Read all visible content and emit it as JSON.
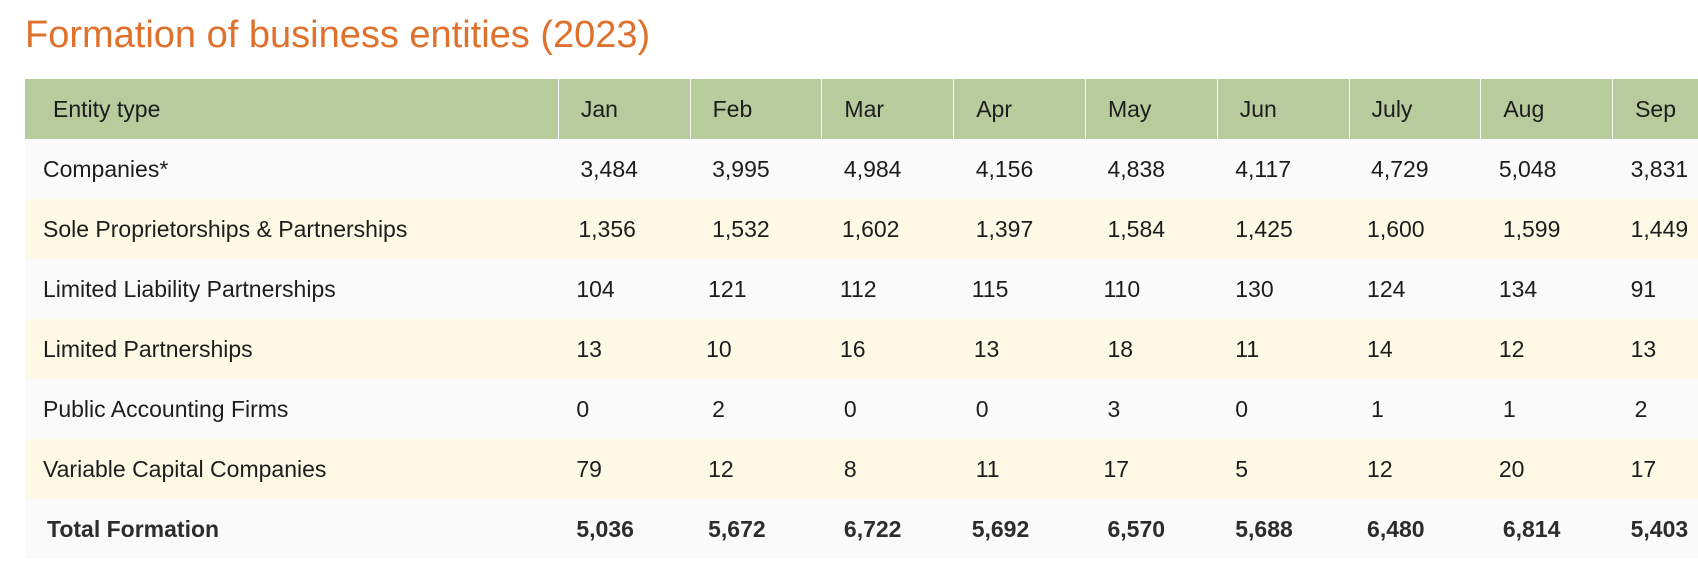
{
  "title": "Formation of business entities (2023)",
  "table": {
    "headers": [
      "Entity type",
      "Jan",
      "Feb",
      "Mar",
      "Apr",
      "May",
      "Jun",
      "July",
      "Aug",
      "Sep"
    ],
    "rows": [
      {
        "label": "Companies*",
        "values": [
          "3,484",
          "3,995",
          "4,984",
          "4,156",
          "4,838",
          "4,117",
          "4,729",
          "5,048",
          "3,831"
        ]
      },
      {
        "label": "Sole Proprietorships & Partnerships",
        "values": [
          "1,356",
          "1,532",
          "1,602",
          "1,397",
          "1,584",
          "1,425",
          "1,600",
          "1,599",
          "1,449"
        ]
      },
      {
        "label": "Limited Liability Partnerships",
        "values": [
          "104",
          "121",
          "112",
          "115",
          "110",
          "130",
          "124",
          "134",
          "91"
        ]
      },
      {
        "label": "Limited Partnerships",
        "values": [
          "13",
          "10",
          "16",
          "13",
          "18",
          "11",
          "14",
          "12",
          "13"
        ]
      },
      {
        "label": "Public Accounting Firms",
        "values": [
          "0",
          "2",
          "0",
          "0",
          "3",
          "0",
          "1",
          "1",
          "2"
        ]
      },
      {
        "label": "Variable Capital Companies",
        "values": [
          "79",
          "12",
          "8",
          "11",
          "17",
          "5",
          "12",
          "20",
          "17"
        ]
      }
    ],
    "total": {
      "label": "Total Formation",
      "values": [
        "5,036",
        "5,672",
        "6,722",
        "5,692",
        "6,570",
        "5,688",
        "6,480",
        "6,814",
        "5,403"
      ]
    }
  }
}
